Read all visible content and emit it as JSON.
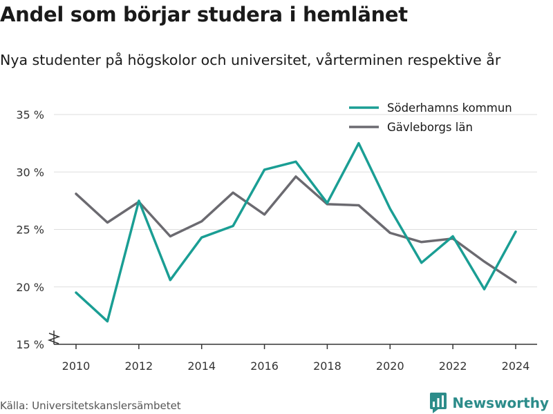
{
  "title": "Andel som börjar studera i hemlänet",
  "subtitle": "Nya studenter på högskolor och universitet, vårterminen respektive år",
  "source": "Källa: Universitetskanslersämbetet",
  "brand": "Newsworthy",
  "colors": {
    "series_soderhamn": "#1a9e94",
    "series_gavleborg": "#6b6a70",
    "grid": "#dddddd",
    "axis": "#333333",
    "brand": "#2c8c8a"
  },
  "chart_data": {
    "type": "line",
    "x": [
      2010,
      2011,
      2012,
      2013,
      2014,
      2015,
      2016,
      2017,
      2018,
      2019,
      2020,
      2021,
      2022,
      2023,
      2024
    ],
    "series": [
      {
        "name": "Söderhamns kommun",
        "values": [
          19.5,
          17.0,
          27.5,
          20.6,
          24.3,
          25.3,
          30.2,
          30.9,
          27.3,
          32.5,
          26.8,
          22.1,
          24.4,
          19.8,
          24.8
        ]
      },
      {
        "name": "Gävleborgs län",
        "values": [
          28.1,
          25.6,
          27.4,
          24.4,
          25.7,
          28.2,
          26.3,
          29.6,
          27.2,
          27.1,
          24.7,
          23.9,
          24.2,
          22.2,
          20.4
        ]
      }
    ],
    "x_ticks": [
      "2010",
      "2012",
      "2014",
      "2016",
      "2018",
      "2020",
      "2022",
      "2024"
    ],
    "y_ticks": [
      "15 %",
      "20 %",
      "25 %",
      "30 %",
      "35 %"
    ],
    "ylim": [
      15,
      35
    ],
    "xlim": [
      2010,
      2024
    ],
    "grid": true,
    "legend_position": "top-right",
    "y_axis_break": true
  }
}
